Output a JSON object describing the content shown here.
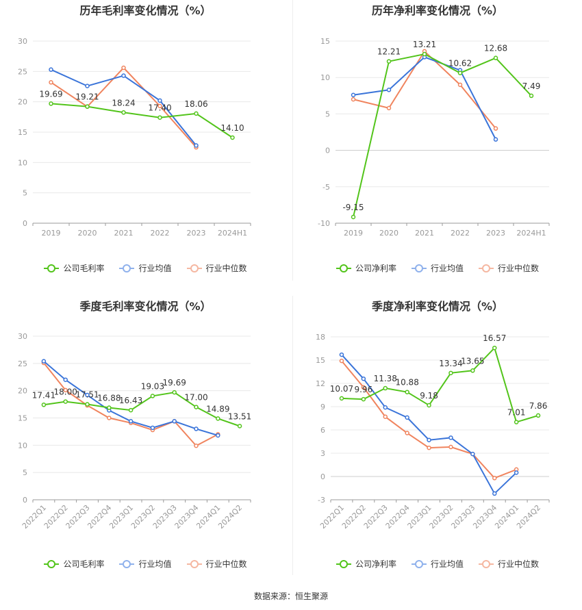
{
  "source": "数据来源：恒生聚源",
  "chart_data": [
    {
      "type": "line",
      "title": "历年毛利率变化情况（%）",
      "categories": [
        "2019",
        "2020",
        "2021",
        "2022",
        "2023",
        "2024H1"
      ],
      "ylim": [
        0,
        30
      ],
      "yticks": [
        0,
        5,
        10,
        15,
        20,
        25,
        30
      ],
      "grid": true,
      "legend_position": "bottom",
      "series": [
        {
          "name": "公司毛利率",
          "color": "#52c41a",
          "values": [
            19.69,
            19.21,
            18.24,
            17.4,
            18.06,
            14.1
          ],
          "labels": [
            "19.69",
            "19.21",
            "18.24",
            "17.40",
            "18.06",
            "14.10"
          ]
        },
        {
          "name": "行业均值",
          "color": "#3a74d9",
          "values": [
            25.3,
            22.6,
            24.3,
            20.2,
            12.8,
            null
          ]
        },
        {
          "name": "行业中位数",
          "color": "#f0845e",
          "values": [
            23.2,
            19.2,
            25.6,
            19.3,
            12.5,
            null
          ]
        }
      ]
    },
    {
      "type": "line",
      "title": "历年净利率变化情况（%）",
      "categories": [
        "2019",
        "2020",
        "2021",
        "2022",
        "2023",
        "2024H1"
      ],
      "ylim": [
        -10,
        15
      ],
      "yticks": [
        -10,
        -5,
        0,
        5,
        10,
        15
      ],
      "grid": true,
      "legend_position": "bottom",
      "series": [
        {
          "name": "公司净利率",
          "color": "#52c41a",
          "values": [
            -9.15,
            12.21,
            13.21,
            10.62,
            12.68,
            7.49
          ],
          "labels": [
            "-9.15",
            "12.21",
            "13.21",
            "10.62",
            "12.68",
            "7.49"
          ]
        },
        {
          "name": "行业均值",
          "color": "#3a74d9",
          "values": [
            7.6,
            8.3,
            12.8,
            11.0,
            1.5,
            null
          ]
        },
        {
          "name": "行业中位数",
          "color": "#f0845e",
          "values": [
            7.0,
            5.8,
            13.6,
            9.0,
            3.0,
            null
          ]
        }
      ]
    },
    {
      "type": "line",
      "title": "季度毛利率变化情况（%）",
      "categories": [
        "2022Q1",
        "2022Q2",
        "2022Q3",
        "2022Q4",
        "2023Q1",
        "2023Q2",
        "2023Q3",
        "2023Q4",
        "2024Q1",
        "2024Q2"
      ],
      "ylim": [
        0,
        30
      ],
      "yticks": [
        0,
        5,
        10,
        15,
        20,
        25,
        30
      ],
      "grid": true,
      "legend_position": "bottom",
      "series": [
        {
          "name": "公司毛利率",
          "color": "#52c41a",
          "values": [
            17.41,
            18.0,
            17.51,
            16.88,
            16.43,
            19.03,
            19.69,
            17.0,
            14.89,
            13.51
          ],
          "labels": [
            "17.41",
            "18.00",
            "17.51",
            "16.88",
            "16.43",
            "19.03",
            "19.69",
            "17.00",
            "14.89",
            "13.51"
          ]
        },
        {
          "name": "行业均值",
          "color": "#3a74d9",
          "values": [
            25.4,
            22.0,
            19.2,
            16.4,
            14.4,
            13.2,
            14.4,
            13.0,
            11.8,
            null
          ]
        },
        {
          "name": "行业中位数",
          "color": "#f0845e",
          "values": [
            25.1,
            20.1,
            17.3,
            15.0,
            14.1,
            12.8,
            14.4,
            9.9,
            12.0,
            null
          ]
        }
      ]
    },
    {
      "type": "line",
      "title": "季度净利率变化情况（%）",
      "categories": [
        "2022Q1",
        "2022Q2",
        "2022Q3",
        "2022Q4",
        "2023Q1",
        "2023Q2",
        "2023Q3",
        "2023Q4",
        "2024Q1",
        "2024Q2"
      ],
      "ylim": [
        -3,
        18
      ],
      "yticks": [
        -3,
        0,
        3,
        6,
        9,
        12,
        15,
        18
      ],
      "grid": true,
      "legend_position": "bottom",
      "series": [
        {
          "name": "公司净利率",
          "color": "#52c41a",
          "values": [
            10.07,
            9.96,
            11.38,
            10.88,
            9.18,
            13.34,
            13.65,
            16.57,
            7.01,
            7.86
          ],
          "labels": [
            "10.07",
            "9.96",
            "11.38",
            "10.88",
            "9.18",
            "13.34",
            "13.65",
            "16.57",
            "7.01",
            "7.86"
          ]
        },
        {
          "name": "行业均值",
          "color": "#3a74d9",
          "values": [
            15.7,
            12.6,
            8.9,
            7.6,
            4.7,
            5.0,
            2.9,
            -2.2,
            0.5,
            null
          ]
        },
        {
          "name": "行业中位数",
          "color": "#f0845e",
          "values": [
            14.9,
            11.5,
            7.7,
            5.6,
            3.7,
            3.8,
            2.9,
            -0.2,
            0.9,
            null
          ]
        }
      ]
    }
  ]
}
